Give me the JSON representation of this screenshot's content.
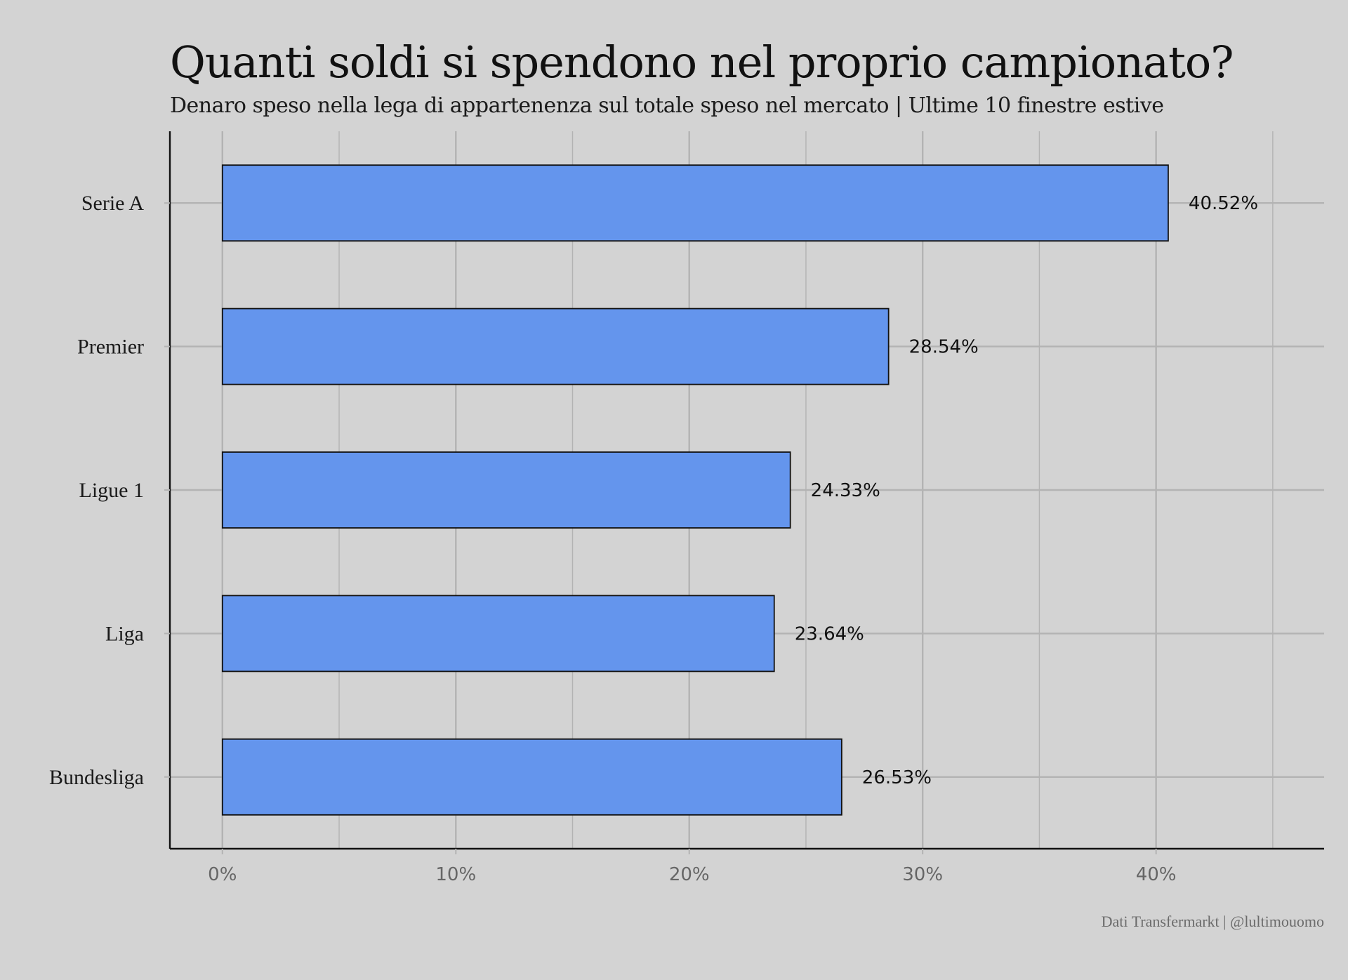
{
  "header": {
    "title": "Quanti soldi si spendono nel proprio campionato?",
    "subtitle": "Denaro speso nella lega di appartenenza sul totale speso nel mercato | Ultime 10 finestre estive"
  },
  "footer": {
    "caption": "Dati Transfermarkt | @lultimouomo"
  },
  "colors": {
    "background": "#d3d3d3",
    "bar_fill": "#6495ed",
    "bar_stroke": "#111111",
    "grid": "#b3b3b3",
    "axis": "#111111"
  },
  "chart_data": {
    "type": "bar",
    "orientation": "horizontal",
    "title": "Quanti soldi si spendono nel proprio campionato?",
    "subtitle": "Denaro speso nella lega di appartenenza sul totale speso nel mercato | Ultime 10 finestre estive",
    "xlabel": "",
    "ylabel": "",
    "categories": [
      "Serie A",
      "Premier",
      "Ligue 1",
      "Liga",
      "Bundesliga"
    ],
    "values": [
      40.52,
      28.54,
      24.33,
      23.64,
      26.53
    ],
    "value_labels": [
      "40.52%",
      "28.54%",
      "24.33%",
      "23.64%",
      "26.53%"
    ],
    "x_ticks": [
      0,
      10,
      20,
      30,
      40
    ],
    "x_tick_labels": [
      "0%",
      "10%",
      "20%",
      "30%",
      "40%"
    ],
    "xlim": [
      -2.25,
      47.2
    ],
    "grid": true,
    "legend": "none",
    "caption": "Dati Transfermarkt | @lultimouomo"
  }
}
